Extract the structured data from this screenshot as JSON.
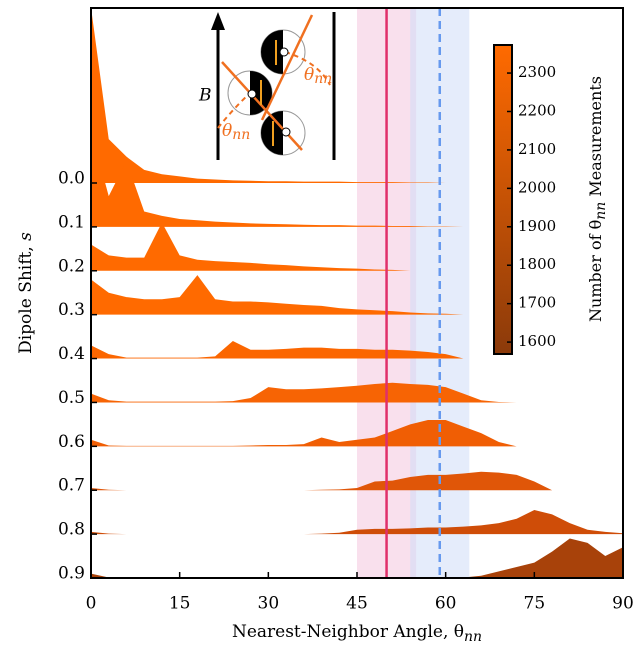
{
  "chart_data": {
    "type": "ridgeline",
    "x_label": "Nearest-Neighbor Angle, θ",
    "x_label_sub": "nn",
    "y_label": "Dipole Shift, ",
    "y_label_var": "s",
    "xlim": [
      0,
      90
    ],
    "xticks": [
      0,
      15,
      30,
      45,
      60,
      75,
      90
    ],
    "x": [
      0,
      3,
      6,
      9,
      12,
      15,
      18,
      21,
      24,
      27,
      30,
      33,
      36,
      39,
      42,
      45,
      48,
      51,
      54,
      57,
      60,
      63,
      66,
      69,
      72,
      75,
      78,
      81,
      84,
      87,
      90
    ],
    "categories": [
      "0.0",
      "0.1",
      "0.2",
      "0.3",
      "0.4",
      "0.5",
      "0.6",
      "0.7",
      "0.8",
      "0.9"
    ],
    "series": [
      {
        "color": "#ff6a00",
        "values": [
          4.0,
          1.0,
          0.6,
          0.3,
          0.2,
          0.15,
          0.1,
          0.08,
          0.06,
          0.05,
          0.04,
          0.04,
          0.03,
          0.03,
          0.03,
          0.02,
          0.02,
          0.02,
          0.01,
          0.01,
          0,
          0,
          0,
          0,
          0,
          0,
          0,
          0,
          0,
          0,
          0
        ]
      },
      {
        "color": "#ff6a00",
        "values": [
          2.2,
          0.7,
          1.5,
          0.35,
          0.25,
          0.18,
          0.15,
          0.12,
          0.1,
          0.08,
          0.07,
          0.06,
          0.05,
          0.04,
          0.04,
          0.03,
          0.03,
          0.02,
          0.02,
          0.01,
          0.01,
          0,
          0,
          0,
          0,
          0,
          0,
          0,
          0,
          0,
          0
        ]
      },
      {
        "color": "#ff6a00",
        "values": [
          0.6,
          0.35,
          0.3,
          0.3,
          1.1,
          0.35,
          0.25,
          0.22,
          0.2,
          0.18,
          0.15,
          0.13,
          0.1,
          0.08,
          0.06,
          0.05,
          0.03,
          0.02,
          0,
          0,
          0,
          0,
          0,
          0,
          0,
          0,
          0,
          0,
          0,
          0,
          0
        ]
      },
      {
        "color": "#ff6a00",
        "values": [
          0.8,
          0.5,
          0.4,
          0.35,
          0.35,
          0.4,
          0.9,
          0.35,
          0.3,
          0.3,
          0.28,
          0.25,
          0.22,
          0.2,
          0.15,
          0.12,
          0.1,
          0.08,
          0.05,
          0.03,
          0.02,
          0,
          0,
          0,
          0,
          0,
          0,
          0,
          0,
          0,
          0
        ]
      },
      {
        "color": "#fb6600",
        "values": [
          0.3,
          0.1,
          0.02,
          0.02,
          0.02,
          0.02,
          0.02,
          0.05,
          0.4,
          0.2,
          0.2,
          0.22,
          0.25,
          0.25,
          0.22,
          0.22,
          0.2,
          0.2,
          0.18,
          0.15,
          0.1,
          0,
          0,
          0,
          0,
          0,
          0,
          0,
          0,
          0,
          0
        ]
      },
      {
        "color": "#f76404",
        "values": [
          0.2,
          0.05,
          0.02,
          0.02,
          0.02,
          0.02,
          0.02,
          0.02,
          0.03,
          0.1,
          0.35,
          0.3,
          0.3,
          0.32,
          0.35,
          0.38,
          0.42,
          0.45,
          0.42,
          0.4,
          0.35,
          0.2,
          0.05,
          0.01,
          0,
          0,
          0,
          0,
          0,
          0,
          0
        ]
      },
      {
        "color": "#f05e04",
        "values": [
          0.15,
          0.02,
          0.01,
          0.01,
          0.01,
          0.01,
          0.01,
          0.01,
          0.01,
          0.02,
          0.03,
          0.03,
          0.05,
          0.2,
          0.1,
          0.15,
          0.2,
          0.35,
          0.5,
          0.6,
          0.6,
          0.45,
          0.3,
          0.1,
          0,
          0,
          0,
          0,
          0,
          0,
          0
        ]
      },
      {
        "color": "#e05608",
        "values": [
          0.05,
          0.01,
          0,
          0,
          0,
          0,
          0,
          0,
          0,
          0,
          0,
          0,
          0,
          0.01,
          0.02,
          0.05,
          0.2,
          0.22,
          0.3,
          0.35,
          0.35,
          0.38,
          0.42,
          0.4,
          0.35,
          0.2,
          0,
          0,
          0,
          0,
          0
        ]
      },
      {
        "color": "#cf4d08",
        "values": [
          0.05,
          0.01,
          0,
          0,
          0,
          0,
          0,
          0,
          0,
          0,
          0,
          0,
          0,
          0.01,
          0.03,
          0.1,
          0.12,
          0.12,
          0.13,
          0.15,
          0.15,
          0.17,
          0.2,
          0.25,
          0.35,
          0.55,
          0.45,
          0.25,
          0.1,
          0.05,
          0.02
        ]
      },
      {
        "color": "#a8420a",
        "values": [
          0.1,
          0.01,
          0,
          0,
          0,
          0,
          0,
          0,
          0,
          0,
          0,
          0,
          0,
          0,
          0,
          0,
          0,
          0,
          0,
          0,
          0,
          0.01,
          0.05,
          0.15,
          0.25,
          0.35,
          0.6,
          0.9,
          0.8,
          0.5,
          0.7
        ]
      }
    ],
    "bands": [
      {
        "from": 45,
        "to": 55,
        "color": "#f4c6de"
      },
      {
        "from": 54,
        "to": 64,
        "color": "#cfdcf8"
      }
    ],
    "vlines": [
      {
        "x": 50,
        "color": "#e0306a",
        "style": "solid"
      },
      {
        "x": 59,
        "color": "#6699ee",
        "style": "dashed"
      }
    ],
    "colorbar": {
      "label": "Number of θ",
      "label_sub": "nn",
      "label_end": " Measurements",
      "clim": [
        1569,
        2373
      ],
      "ticks": [
        1600,
        1700,
        1800,
        1900,
        2000,
        2100,
        2200,
        2300
      ],
      "colors": [
        "#8b3a0a",
        "#ff6a00"
      ]
    },
    "inset": {
      "field": "B",
      "angle": "θ",
      "angle_sub": "nn"
    }
  }
}
